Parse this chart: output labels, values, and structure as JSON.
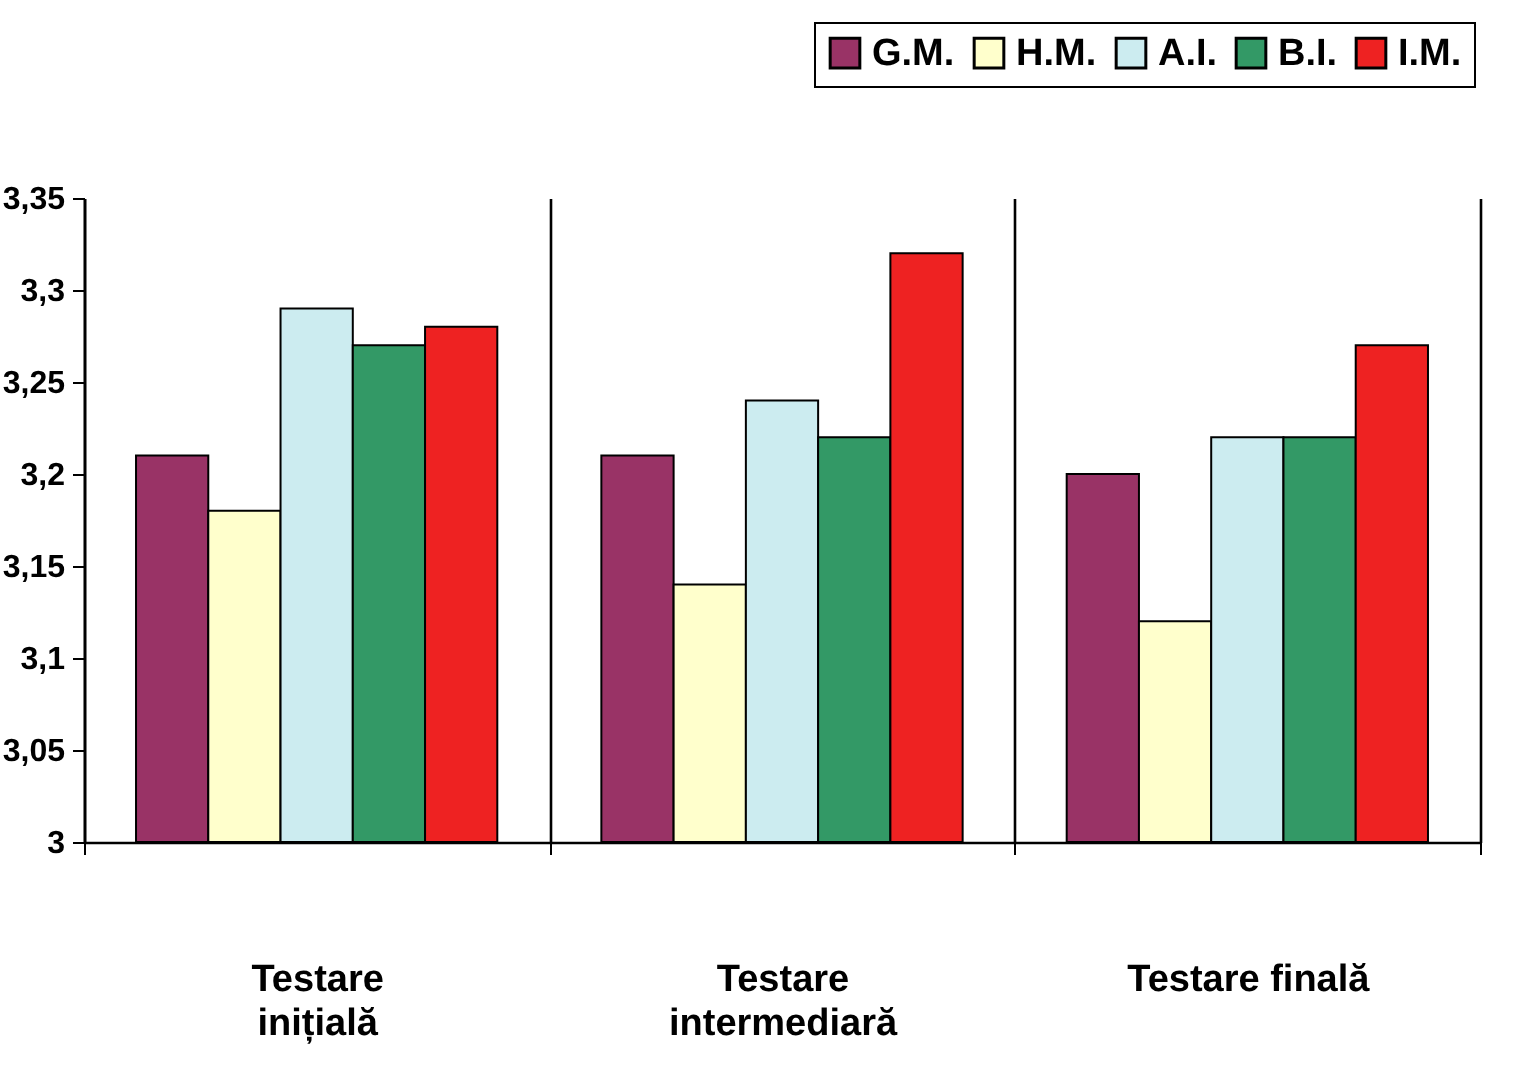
{
  "chart_data": {
    "type": "bar",
    "categories": [
      "Testare inițială",
      "Testare intermediară",
      "Testare finală"
    ],
    "series": [
      {
        "name": "G.M.",
        "color": "#993366",
        "values": [
          3.21,
          3.21,
          3.2
        ]
      },
      {
        "name": "H.M.",
        "color": "#ffffcc",
        "values": [
          3.18,
          3.14,
          3.12
        ]
      },
      {
        "name": "A.I.",
        "color": "#ccecf0",
        "values": [
          3.29,
          3.24,
          3.22
        ]
      },
      {
        "name": "B.I.",
        "color": "#339966",
        "values": [
          3.27,
          3.22,
          3.22
        ]
      },
      {
        "name": "I.M.",
        "color": "#ee2222",
        "values": [
          3.28,
          3.32,
          3.27
        ]
      }
    ],
    "ylim": [
      3,
      3.35
    ],
    "yticks": [
      {
        "value": 3,
        "label": "3"
      },
      {
        "value": 3.05,
        "label": "3,05"
      },
      {
        "value": 3.1,
        "label": "3,1"
      },
      {
        "value": 3.15,
        "label": "3,15"
      },
      {
        "value": 3.2,
        "label": "3,2"
      },
      {
        "value": 3.25,
        "label": "3,25"
      },
      {
        "value": 3.3,
        "label": "3,3"
      },
      {
        "value": 3.35,
        "label": "3,35"
      }
    ],
    "grid": "x",
    "legend": "top"
  }
}
